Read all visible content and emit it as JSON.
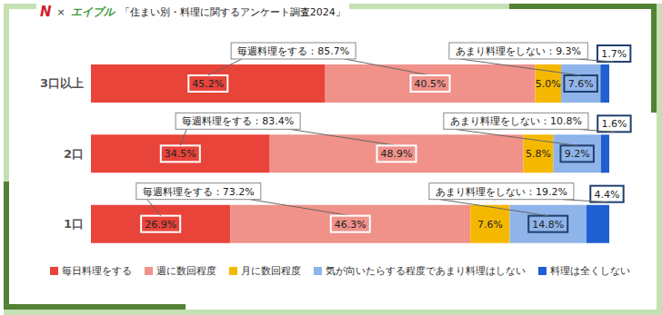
{
  "header": {
    "logos": [
      "N",
      "エイブル"
    ],
    "separator": "×"
  },
  "chart_data": {
    "type": "bar",
    "title": "「住まい別・料理に関するアンケート調査2024」",
    "orientation": "horizontal",
    "stacked": true,
    "data_labels": true,
    "tick_labels": "y",
    "grid": false,
    "legend": "bottom",
    "xlim": [
      0,
      100
    ],
    "categories": [
      "3口以上",
      "2口",
      "1口"
    ],
    "series": [
      {
        "name": "毎日料理をする",
        "color": "#e8443a",
        "values": [
          45.2,
          34.5,
          26.9
        ],
        "value_labels": [
          "45.2%",
          "34.5%",
          "26.9%"
        ]
      },
      {
        "name": "週に数回程度",
        "color": "#f0918a",
        "values": [
          40.5,
          48.9,
          46.3
        ],
        "value_labels": [
          "40.5%",
          "48.9%",
          "46.3%"
        ]
      },
      {
        "name": "月に数回程度",
        "color": "#f5b800",
        "values": [
          5.0,
          5.8,
          7.6
        ],
        "value_labels": [
          "5.0%",
          "5.8%",
          "7.6%"
        ]
      },
      {
        "name": "気が向いたらする程度であまり料理はしない",
        "color": "#8fb4ea",
        "values": [
          7.6,
          9.2,
          14.8
        ],
        "value_labels": [
          "7.6%",
          "9.2%",
          "14.8%"
        ]
      },
      {
        "name": "料理は全くしない",
        "color": "#1f5fd1",
        "values": [
          1.7,
          1.6,
          4.4
        ],
        "value_labels": [
          "1.7%",
          "1.6%",
          "4.4%"
        ]
      }
    ],
    "annotations": [
      {
        "category": "3口以上",
        "texts": [
          "毎週料理をする：85.7%",
          "あまり料理をしない：9.3%"
        ]
      },
      {
        "category": "2口",
        "texts": [
          "毎週料理をする：83.4%",
          "あまり料理をしない：10.8%"
        ]
      },
      {
        "category": "1口",
        "texts": [
          "毎週料理をする：73.2%",
          "あまり料理をしない：19.2%"
        ]
      }
    ]
  }
}
